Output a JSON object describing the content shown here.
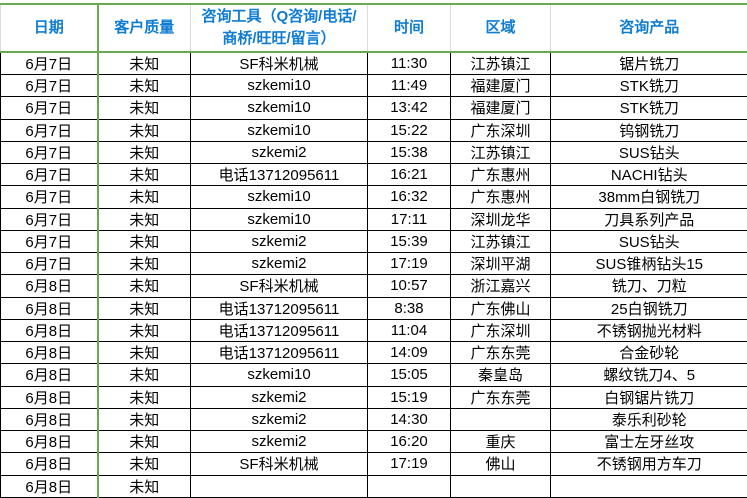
{
  "app": {
    "description": "consultation-log-spreadsheet"
  },
  "colors": {
    "accent_green_border": "#6aa84f",
    "header_text_blue": "#0f7cd3",
    "grid_line_black": "#000000",
    "header_grid_gray": "#dcdcdc",
    "background": "#ffffff"
  },
  "table": {
    "columns": [
      "日期",
      "客户质量",
      "咨询工具（Q咨询/电话/商桥/旺旺/留言）",
      "时间",
      "区域",
      "咨询产品"
    ],
    "rows": [
      [
        "6月7日",
        "未知",
        "SF科米机械",
        "11:30",
        "江苏镇江",
        "锯片铣刀"
      ],
      [
        "6月7日",
        "未知",
        "szkemi10",
        "11:49",
        "福建厦门",
        "STK铣刀"
      ],
      [
        "6月7日",
        "未知",
        "szkemi10",
        "13:42",
        "福建厦门",
        "STK铣刀"
      ],
      [
        "6月7日",
        "未知",
        "szkemi10",
        "15:22",
        "广东深圳",
        "钨钢铣刀"
      ],
      [
        "6月7日",
        "未知",
        "szkemi2",
        "15:38",
        "江苏镇江",
        "SUS钻头"
      ],
      [
        "6月7日",
        "未知",
        "电话13712095611",
        "16:21",
        "广东惠州",
        "NACHI钻头"
      ],
      [
        "6月7日",
        "未知",
        "szkemi10",
        "16:32",
        "广东惠州",
        "38mm白钢铣刀"
      ],
      [
        "6月7日",
        "未知",
        "szkemi10",
        "17:11",
        "深圳龙华",
        "刀具系列产品"
      ],
      [
        "6月7日",
        "未知",
        "szkemi2",
        "15:39",
        "江苏镇江",
        "SUS钻头"
      ],
      [
        "6月7日",
        "未知",
        "szkemi2",
        "17:19",
        "深圳平湖",
        "SUS锥柄钻头15"
      ],
      [
        "6月8日",
        "未知",
        "SF科米机械",
        "10:57",
        "浙江嘉兴",
        "铣刀、刀粒"
      ],
      [
        "6月8日",
        "未知",
        "电话13712095611",
        "8:38",
        "广东佛山",
        "25白钢铣刀"
      ],
      [
        "6月8日",
        "未知",
        "电话13712095611",
        "11:04",
        "广东深圳",
        "不锈钢抛光材料"
      ],
      [
        "6月8日",
        "未知",
        "电话13712095611",
        "14:09",
        "广东东莞",
        "合金砂轮"
      ],
      [
        "6月8日",
        "未知",
        "szkemi10",
        "15:05",
        "秦皇岛",
        "螺纹铣刀4、5"
      ],
      [
        "6月8日",
        "未知",
        "szkemi2",
        "15:19",
        "广东东莞",
        "白钢锯片铣刀"
      ],
      [
        "6月8日",
        "未知",
        "szkemi2",
        "14:30",
        "",
        "泰乐利砂轮"
      ],
      [
        "6月8日",
        "未知",
        "szkemi2",
        "16:20",
        "重庆",
        "富士左牙丝攻"
      ],
      [
        "6月8日",
        "未知",
        "SF科米机械",
        "17:19",
        "佛山",
        "不锈钢用方车刀"
      ],
      [
        "6月8日",
        "未知",
        "",
        "",
        "",
        ""
      ]
    ]
  }
}
